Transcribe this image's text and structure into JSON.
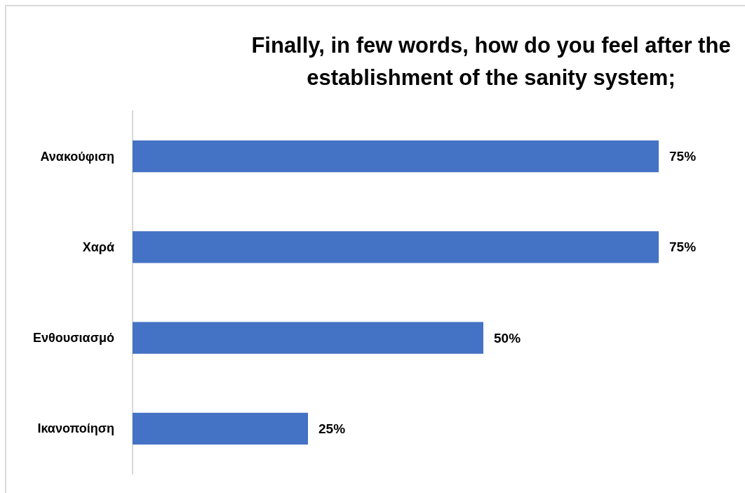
{
  "chart_data": {
    "type": "bar",
    "orientation": "horizontal",
    "title": "Finally, in few words, how do you feel after the\nestablishment of the sanity system;",
    "categories": [
      "Ανακούφιση",
      "Χαρά",
      "Ενθουσιασμό",
      "Ικανοποίηση"
    ],
    "values": [
      75,
      75,
      50,
      25
    ],
    "color": "#4472c4",
    "value_labels": [
      "75%",
      "75%",
      "50%",
      "25%"
    ]
  }
}
